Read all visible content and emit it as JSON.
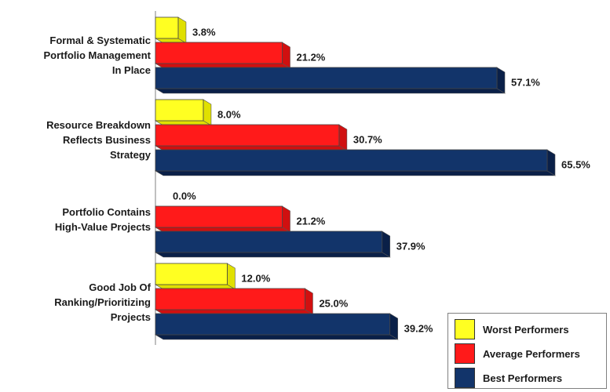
{
  "chart_data": {
    "type": "bar",
    "orientation": "horizontal",
    "style": "3d",
    "categories": [
      "Formal & Systematic Portfolio Management In Place",
      "Resource Breakdown Reflects Business Strategy",
      "Portfolio Contains High-Value Projects",
      "Good Job Of Ranking/Prioritizing Projects"
    ],
    "category_lines": [
      [
        "Formal & Systematic",
        "Portfolio Management",
        "In Place"
      ],
      [
        "Resource Breakdown",
        "Reflects Business",
        "Strategy"
      ],
      [
        "Portfolio Contains",
        "High-Value Projects"
      ],
      [
        "Good Job Of",
        "Ranking/Prioritizing",
        "Projects"
      ]
    ],
    "series": [
      {
        "name": "Worst Performers",
        "color": "#ffff22",
        "side_color": "#e0e000",
        "values": [
          3.8,
          8.0,
          0.0,
          12.0
        ],
        "labels": [
          "3.8%",
          "8.0%",
          "0.0%",
          "12.0%"
        ]
      },
      {
        "name": "Average Performers",
        "color": "#ff1a1a",
        "side_color": "#d01010",
        "values": [
          21.2,
          30.7,
          21.2,
          25.0
        ],
        "labels": [
          "21.2%",
          "30.7%",
          "21.2%",
          "25.0%"
        ]
      },
      {
        "name": "Best Performers",
        "color": "#12346a",
        "side_color": "#0a2048",
        "values": [
          57.1,
          65.5,
          37.9,
          39.2
        ],
        "labels": [
          "57.1%",
          "65.5%",
          "37.9%",
          "39.2%"
        ]
      }
    ],
    "unit": "%",
    "xlim": [
      0,
      70
    ],
    "grid": false,
    "legend_position": "bottom-right"
  }
}
